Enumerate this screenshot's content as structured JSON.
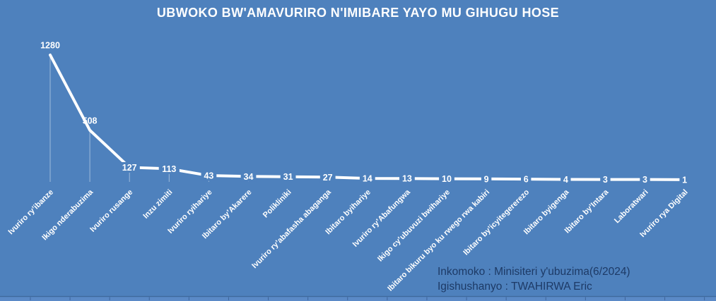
{
  "title": "UBWOKO BW'AMAVURIRO N'IMIBARE YAYO MU GIHUGU HOSE",
  "source": {
    "line1": "Inkomoko : Minisiteri y'ubuzima(6/2024)",
    "line2": "Igishushanyo : TWAHIRWA Eric"
  },
  "chart_data": {
    "type": "line",
    "title": "UBWOKO BW'AMAVURIRO N'IMIBARE YAYO MU GIHUGU HOSE",
    "categories": [
      "Ivuriro ry’ibanze",
      "Ikigo nderabuzima",
      "Ivuriro rusange",
      "Inzu zimiti",
      "Ivuriro ryihariye",
      "Ibitaro by’Akarere",
      "Polikliniki",
      "Ivuriro ry’abafasha abaganga",
      "Ibitaro byihariye",
      "Ivuriro ry’Abafungwa",
      "Ikigo cy’ubuvuzi bwihariye",
      "Ibitaro bikuru byo ku rwego rwa kabiri",
      "Ibitaro by’icyitegererezo",
      "Ibitaro byigenga",
      "Ibitaro by’Intara",
      "Laboratwari",
      "Ivuriro rya Digital"
    ],
    "values": [
      1280,
      508,
      127,
      113,
      43,
      34,
      31,
      27,
      14,
      13,
      10,
      9,
      6,
      4,
      3,
      3,
      1
    ],
    "xlabel": "",
    "ylabel": "",
    "ylim": [
      0,
      1280
    ],
    "grid": false,
    "legend": false,
    "data_labels": true,
    "category_label_rotation_deg": 45,
    "colors": {
      "background": "#4e81bd",
      "line": "#ffffff",
      "data_label": "#ffffff",
      "category_label": "#ffffff",
      "drop_line": "rgba(255,255,255,0.45)",
      "source_text": "#1d3a66",
      "axis_line": "#40699c",
      "axis_strip": "#5b8ac7",
      "axis_tick": "rgba(35,70,120,0.55)"
    }
  }
}
